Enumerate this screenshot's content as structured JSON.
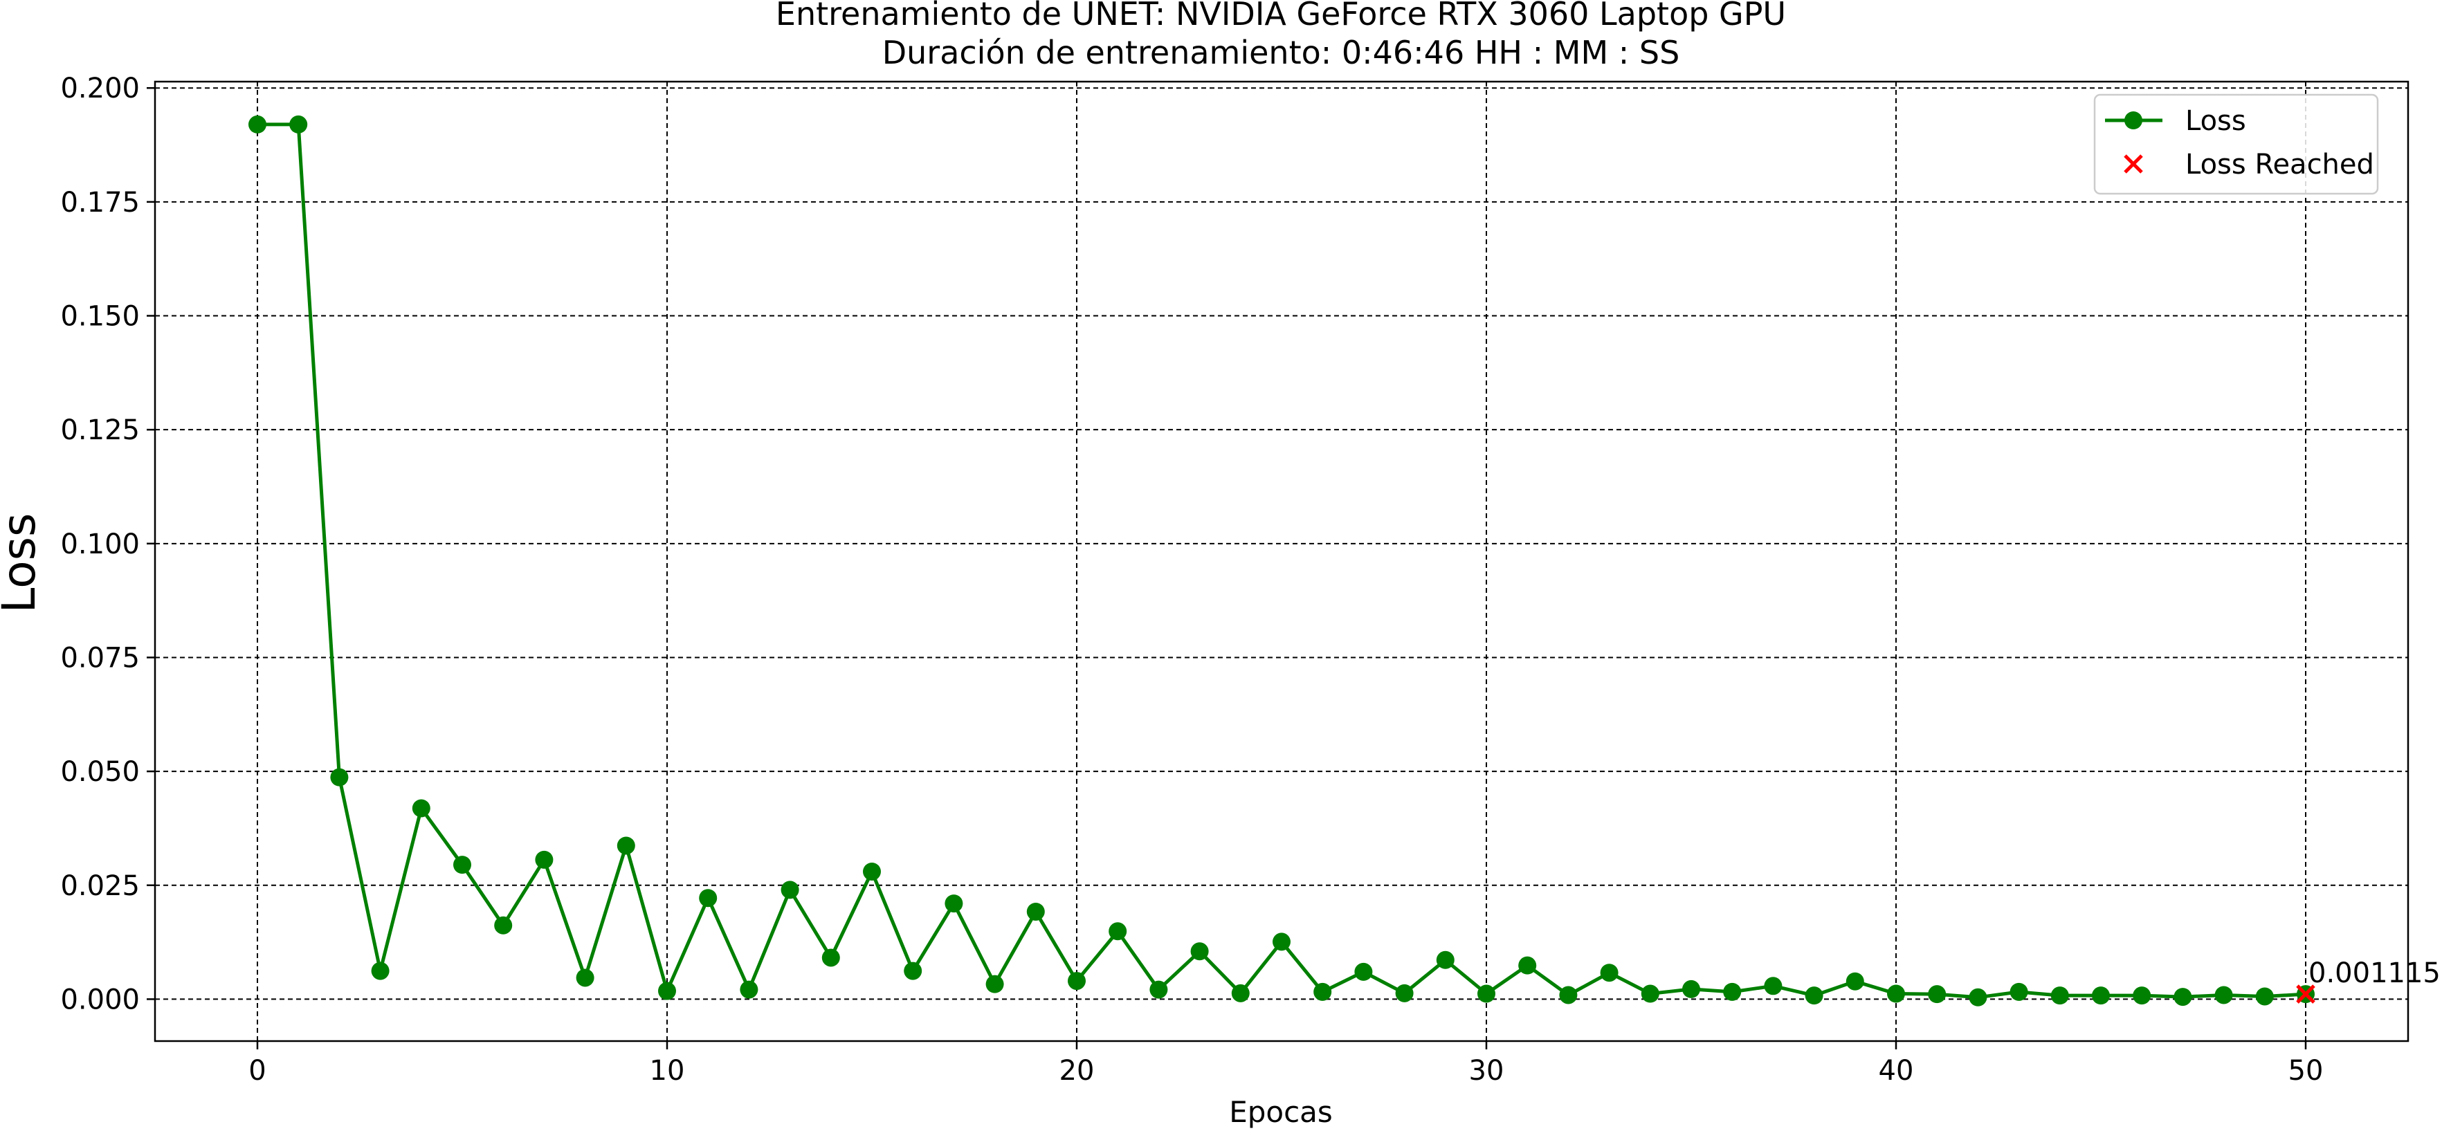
{
  "chart_data": {
    "type": "line",
    "title": "Entrenamiento de UNET: NVIDIA GeForce RTX 3060 Laptop GPU",
    "subtitle": "Duración de entrenamiento: 0:46:46 HH : MM : SS",
    "xlabel": "Epocas",
    "ylabel": "Loss",
    "xlim": [
      -2.5,
      52.5
    ],
    "ylim": [
      -0.0092,
      0.2014
    ],
    "x_ticks": [
      0,
      10,
      20,
      30,
      40,
      50
    ],
    "y_ticks": [
      0.0,
      0.025,
      0.05,
      0.075,
      0.1,
      0.125,
      0.15,
      0.175,
      0.2
    ],
    "y_tick_labels": [
      "0.000",
      "0.025",
      "0.050",
      "0.075",
      "0.100",
      "0.125",
      "0.150",
      "0.175",
      "0.200"
    ],
    "grid": true,
    "legend_position": "top-right",
    "series": [
      {
        "name": "Loss",
        "color": "#008000",
        "marker": "circle",
        "x": [
          0,
          1,
          2,
          3,
          4,
          5,
          6,
          7,
          8,
          9,
          10,
          11,
          12,
          13,
          14,
          15,
          16,
          17,
          18,
          19,
          20,
          21,
          22,
          23,
          24,
          25,
          26,
          27,
          28,
          29,
          30,
          31,
          32,
          33,
          34,
          35,
          36,
          37,
          38,
          39,
          40,
          41,
          42,
          43,
          44,
          45,
          46,
          47,
          48,
          49,
          50
        ],
        "y": [
          0.192,
          0.192,
          0.0487,
          0.0062,
          0.0419,
          0.0295,
          0.0162,
          0.0306,
          0.0047,
          0.0337,
          0.0018,
          0.0222,
          0.0021,
          0.024,
          0.0091,
          0.028,
          0.0062,
          0.021,
          0.0033,
          0.0192,
          0.004,
          0.0149,
          0.0021,
          0.0105,
          0.0013,
          0.0126,
          0.0016,
          0.006,
          0.0013,
          0.0086,
          0.0012,
          0.0074,
          0.0009,
          0.0058,
          0.0012,
          0.0022,
          0.0016,
          0.0029,
          0.0008,
          0.0039,
          0.0012,
          0.0011,
          0.0004,
          0.0016,
          0.0008,
          0.0008,
          0.0008,
          0.0005,
          0.0009,
          0.0006,
          0.001115
        ]
      },
      {
        "name": "Loss Reached",
        "color": "#ff0000",
        "marker": "x",
        "x": [
          50
        ],
        "y": [
          0.001115
        ]
      }
    ],
    "annotations": [
      {
        "text": "0.001115",
        "x": 50,
        "y": 0.001115
      }
    ]
  }
}
